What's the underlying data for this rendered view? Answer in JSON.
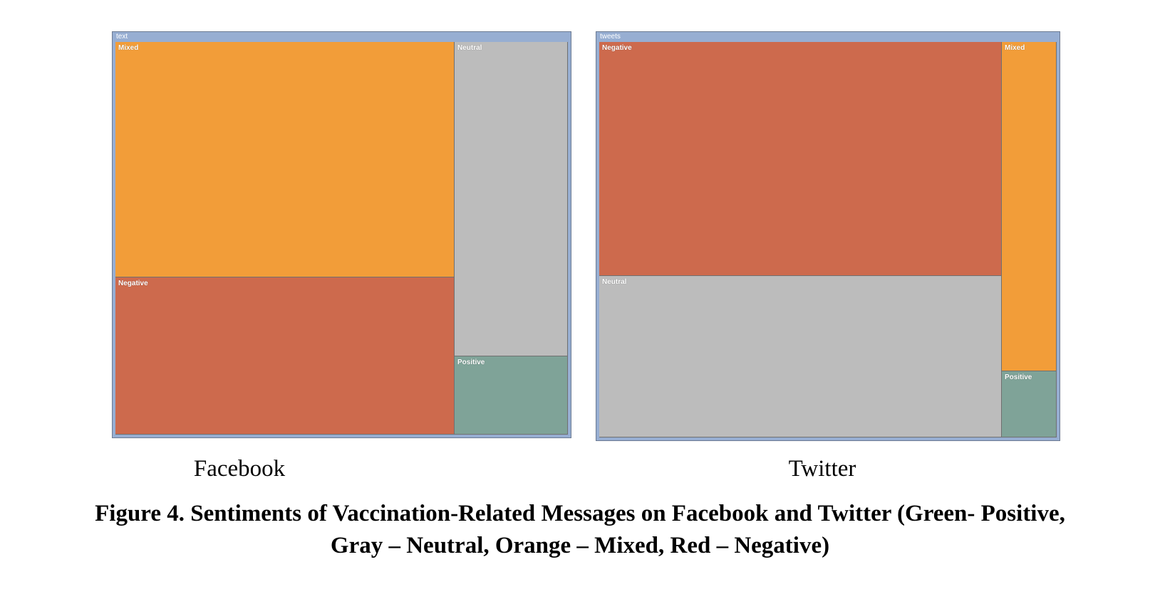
{
  "chart_data": [
    {
      "type": "treemap",
      "root_label": "text",
      "caption": "Facebook",
      "cells": [
        {
          "name": "Mixed",
          "value": 45,
          "color": "#f29d39"
        },
        {
          "name": "Negative",
          "value": 30,
          "color": "#cd6a4d"
        },
        {
          "name": "Neutral",
          "value": 20,
          "color": "#bcbcbc"
        },
        {
          "name": "Positive",
          "value": 5,
          "color": "#7fa398"
        }
      ]
    },
    {
      "type": "treemap",
      "root_label": "tweets",
      "caption": "Twitter",
      "cells": [
        {
          "name": "Negative",
          "value": 52,
          "color": "#cd6a4d"
        },
        {
          "name": "Neutral",
          "value": 36,
          "color": "#bcbcbc"
        },
        {
          "name": "Mixed",
          "value": 10,
          "color": "#f29d39"
        },
        {
          "name": "Positive",
          "value": 2,
          "color": "#7fa398"
        }
      ]
    }
  ],
  "figure_caption": {
    "line1": "Figure 4. Sentiments of Vaccination-Related Messages on Facebook and Twitter (Green- Positive,",
    "line2": "Gray – Neutral, Orange – Mixed, Red – Negative)"
  }
}
